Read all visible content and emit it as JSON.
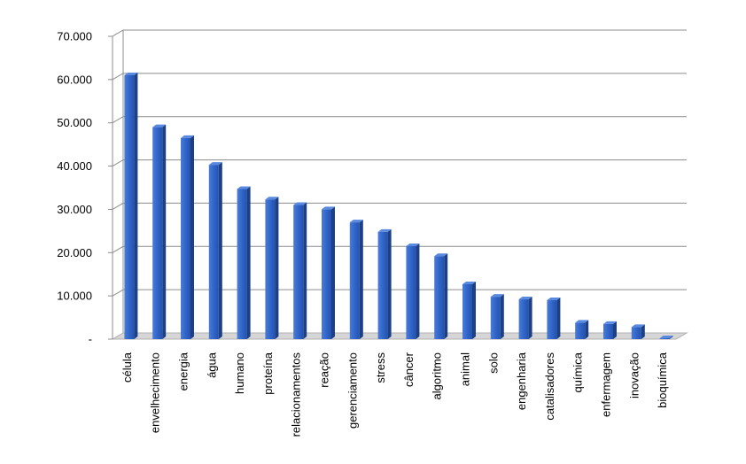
{
  "chart_data": {
    "type": "bar",
    "title": "",
    "xlabel": "",
    "ylabel": "",
    "ylim": [
      0,
      70000
    ],
    "grid": true,
    "legend": "none",
    "yticks": [
      {
        "value": 0,
        "label": "-"
      },
      {
        "value": 10000,
        "label": "10.000"
      },
      {
        "value": 20000,
        "label": "20.000"
      },
      {
        "value": 30000,
        "label": "30.000"
      },
      {
        "value": 40000,
        "label": "40.000"
      },
      {
        "value": 50000,
        "label": "50.000"
      },
      {
        "value": 60000,
        "label": "60.000"
      },
      {
        "value": 70000,
        "label": "70.000"
      }
    ],
    "categories": [
      "célula",
      "envelhecimento",
      "energia",
      "água",
      "humano",
      "proteína",
      "relacionamentos",
      "reação",
      "gerenciamento",
      "stress",
      "câncer",
      "algoritmo",
      "animal",
      "solo",
      "engenharia",
      "catalisadores",
      "química",
      "enfermagem",
      "inovação",
      "bioquímica"
    ],
    "values": [
      61000,
      49000,
      46500,
      40300,
      34700,
      32300,
      31000,
      30000,
      27000,
      24800,
      21500,
      19200,
      12700,
      9800,
      9200,
      9000,
      3800,
      3500,
      2800,
      200
    ],
    "colors": {
      "bar_front": "#2f63c7",
      "bar_side": "#1c3f86",
      "bar_top": "#5a8ae0",
      "grid": "#8c8c8c",
      "floor": "#b0b0b0"
    }
  }
}
